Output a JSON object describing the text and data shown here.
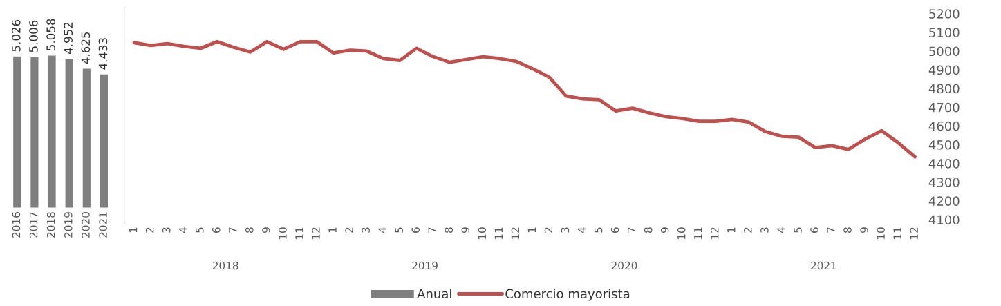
{
  "chart_data": [
    {
      "type": "bar",
      "categories": [
        "2016",
        "2017",
        "2018",
        "2019",
        "2020",
        "2021"
      ],
      "series": [
        {
          "name": "Anual",
          "color": "#7f7f7f",
          "values": [
            5.026,
            5.006,
            5.058,
            4.952,
            4.625,
            4.433
          ],
          "value_labels": [
            "5.026",
            "5.006",
            "5.058",
            "4.952",
            "4.625",
            "4.433"
          ]
        }
      ],
      "tick_labels": "x",
      "legend": "bottom"
    },
    {
      "type": "line",
      "categories": [
        "1",
        "2",
        "3",
        "4",
        "5",
        "6",
        "7",
        "8",
        "9",
        "10",
        "11",
        "12",
        "1",
        "2",
        "3",
        "4",
        "5",
        "6",
        "7",
        "8",
        "9",
        "10",
        "11",
        "12",
        "1",
        "2",
        "3",
        "4",
        "5",
        "6",
        "7",
        "8",
        "9",
        "10",
        "11",
        "12",
        "1",
        "2",
        "3",
        "4",
        "5",
        "6",
        "7",
        "8",
        "9",
        "10",
        "11",
        "12"
      ],
      "series": [
        {
          "name": "Comercio mayorista",
          "color": "#c0504d",
          "values": [
            5045,
            5030,
            5040,
            5025,
            5015,
            5050,
            5020,
            4995,
            5050,
            5010,
            5050,
            5050,
            4990,
            5005,
            5000,
            4960,
            4950,
            5015,
            4970,
            4940,
            4955,
            4970,
            4960,
            4945,
            4905,
            4860,
            4760,
            4745,
            4740,
            4680,
            4695,
            4670,
            4650,
            4640,
            4625,
            4625,
            4635,
            4620,
            4570,
            4545,
            4540,
            4485,
            4495,
            4475,
            4530,
            4575,
            4510,
            4435
          ]
        }
      ],
      "ylim": [
        4080,
        5240
      ],
      "yticks": [
        4100,
        4200,
        4300,
        4400,
        4500,
        4600,
        4700,
        4800,
        4900,
        5000,
        5100,
        5200
      ],
      "annotations": [
        "2018",
        "2019",
        "2020",
        "2021"
      ],
      "legend": "bottom",
      "marker": "none",
      "line_style": "solid"
    }
  ]
}
